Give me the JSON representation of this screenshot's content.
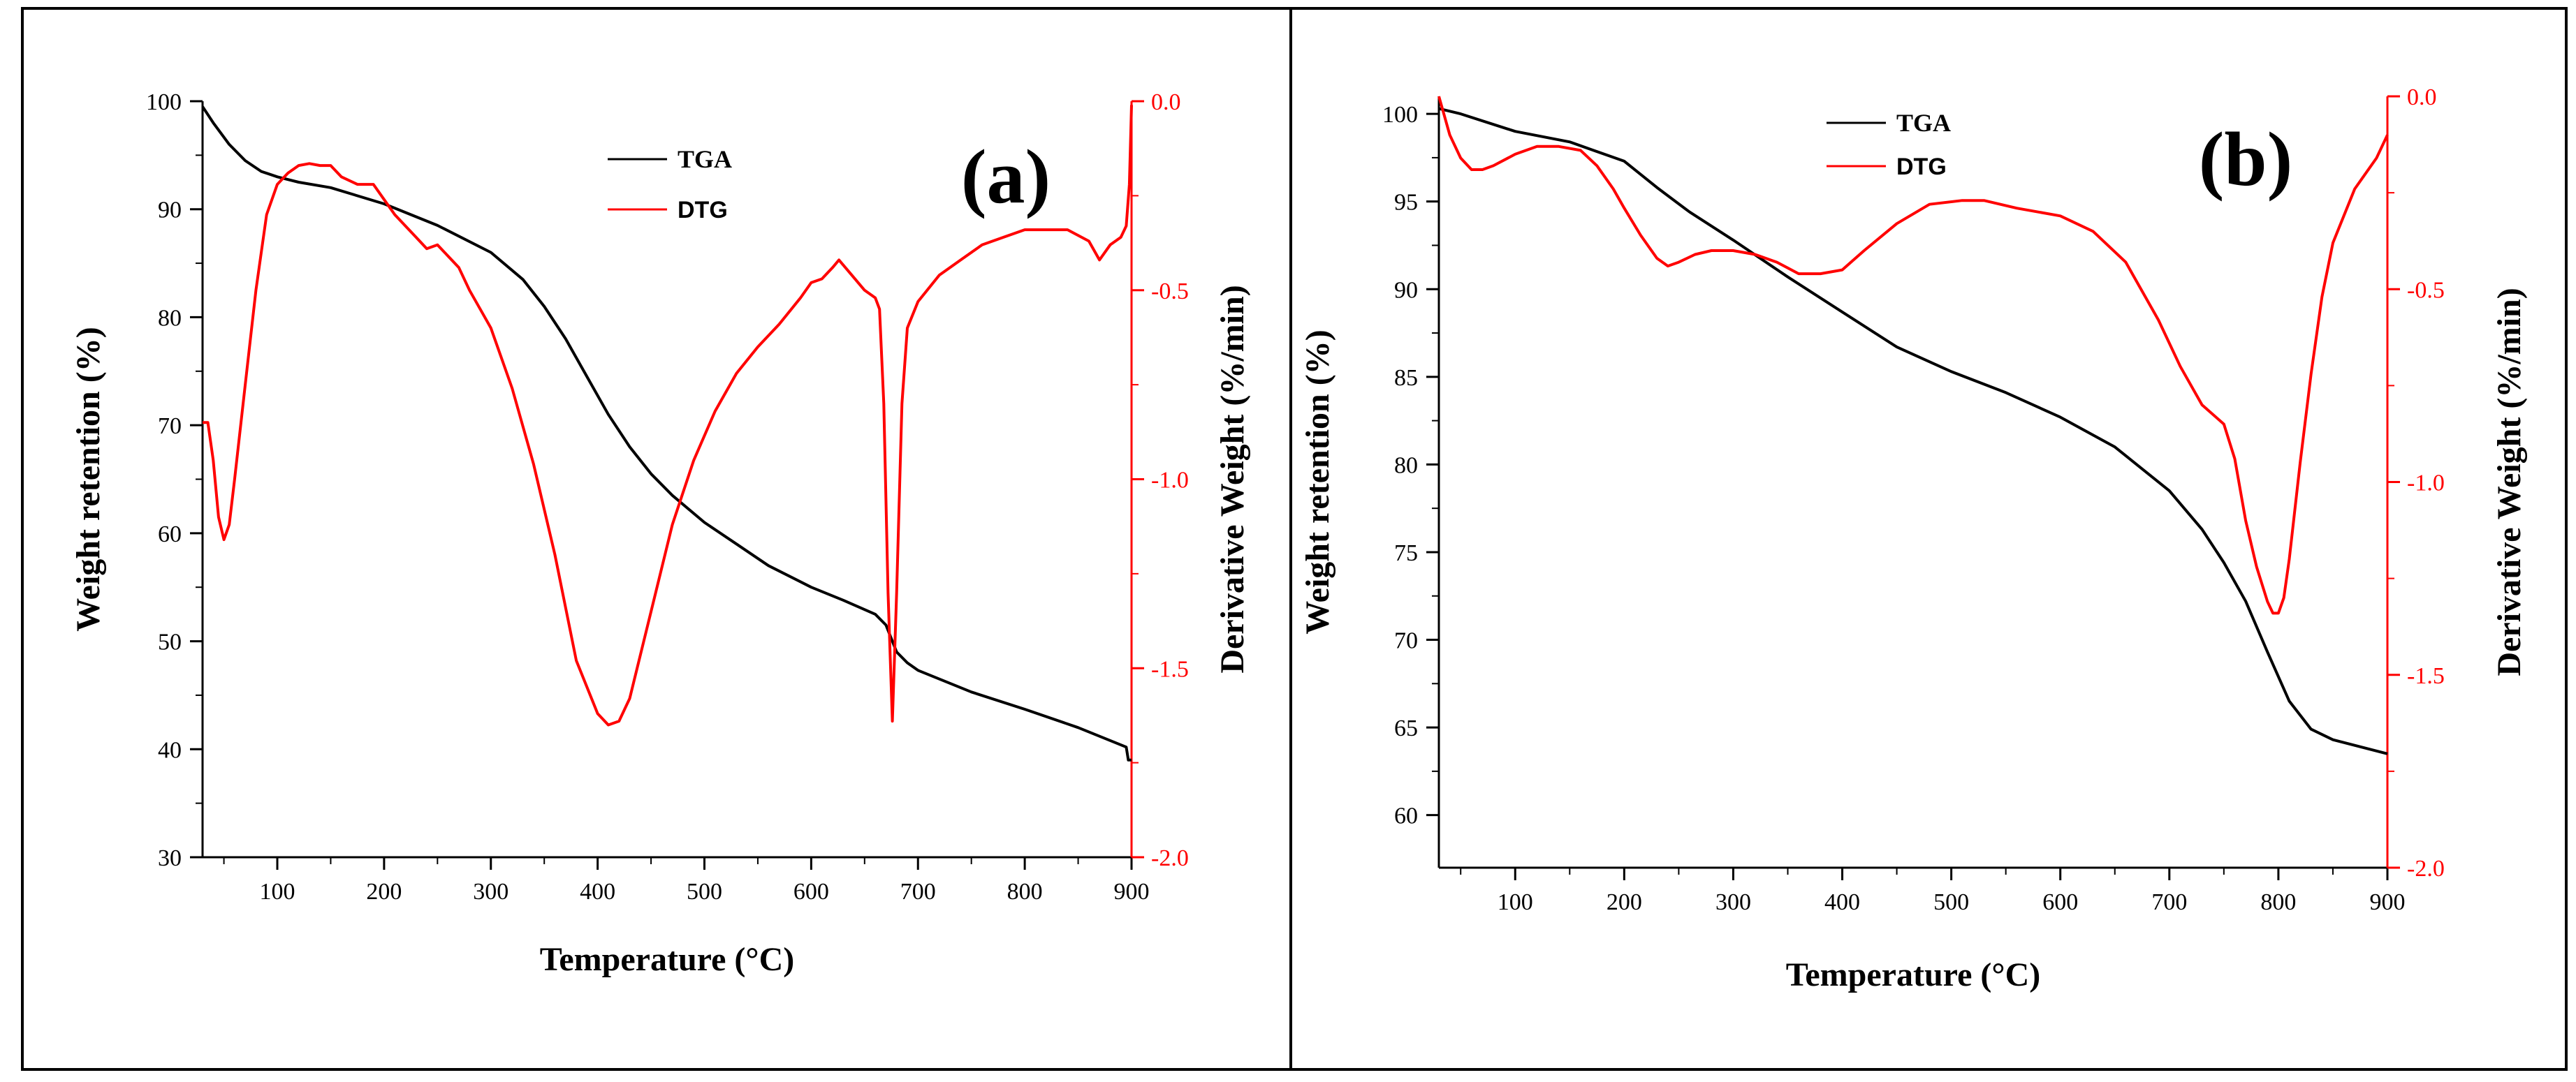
{
  "colors": {
    "tga": "#000000",
    "dtg": "#ff0000",
    "frame": "#000000",
    "background": "#ffffff"
  },
  "chart_data": [
    {
      "type": "line",
      "panel_label": "(a)",
      "xlabel": "Temperature (°C)",
      "ylabel": "Weight retention (%)",
      "ylabel_right": "Derivative Weight (%/min)",
      "xlim": [
        30,
        900
      ],
      "ylim": [
        30,
        100
      ],
      "ylim_right": [
        -2.0,
        0.0
      ],
      "x_ticks": [
        "100",
        "200",
        "300",
        "400",
        "500",
        "600",
        "700",
        "800",
        "900"
      ],
      "x_tick_values": [
        100,
        200,
        300,
        400,
        500,
        600,
        700,
        800,
        900
      ],
      "y_ticks": [
        "30",
        "40",
        "50",
        "60",
        "70",
        "80",
        "90",
        "100"
      ],
      "y_tick_values": [
        30,
        40,
        50,
        60,
        70,
        80,
        90,
        100
      ],
      "y2_ticks": [
        "-2.0",
        "-1.5",
        "-1.0",
        "-0.5",
        "0.0"
      ],
      "y2_tick_values": [
        -2.0,
        -1.5,
        -1.0,
        -0.5,
        0.0
      ],
      "legend": {
        "placement": "top-center",
        "tga_label": "TGA",
        "dtg_label": "DTG"
      },
      "series": [
        {
          "name": "TGA",
          "axis": "left",
          "x": [
            30,
            40,
            55,
            70,
            85,
            100,
            120,
            150,
            200,
            250,
            300,
            330,
            350,
            370,
            390,
            410,
            430,
            450,
            470,
            500,
            530,
            560,
            600,
            630,
            660,
            670,
            676,
            680,
            690,
            700,
            750,
            800,
            850,
            895,
            897,
            900
          ],
          "y": [
            99.5,
            98,
            96,
            94.5,
            93.5,
            93,
            92.5,
            92,
            90.5,
            88.5,
            86,
            83.5,
            81,
            78,
            74.5,
            71,
            68,
            65.5,
            63.5,
            61,
            59,
            57,
            55,
            53.8,
            52.5,
            51.5,
            50,
            49,
            48,
            47.3,
            45.3,
            43.7,
            42,
            40.2,
            39,
            39
          ]
        },
        {
          "name": "DTG",
          "axis": "right",
          "x": [
            30,
            35,
            40,
            45,
            50,
            55,
            60,
            70,
            80,
            90,
            100,
            110,
            120,
            130,
            140,
            150,
            160,
            175,
            190,
            200,
            210,
            220,
            230,
            240,
            250,
            260,
            270,
            280,
            290,
            300,
            320,
            340,
            360,
            380,
            400,
            410,
            420,
            430,
            450,
            470,
            490,
            510,
            530,
            550,
            570,
            590,
            600,
            610,
            620,
            626,
            635,
            650,
            660,
            664,
            668,
            672,
            676,
            680,
            685,
            690,
            700,
            720,
            740,
            760,
            780,
            800,
            820,
            840,
            860,
            870,
            880,
            890,
            895,
            898,
            900
          ],
          "y": [
            -0.85,
            -0.85,
            -0.95,
            -1.1,
            -1.16,
            -1.12,
            -1.0,
            -0.75,
            -0.5,
            -0.3,
            -0.22,
            -0.19,
            -0.17,
            -0.165,
            -0.17,
            -0.17,
            -0.2,
            -0.22,
            -0.22,
            -0.26,
            -0.3,
            -0.33,
            -0.36,
            -0.39,
            -0.38,
            -0.41,
            -0.44,
            -0.5,
            -0.55,
            -0.6,
            -0.76,
            -0.96,
            -1.2,
            -1.48,
            -1.62,
            -1.65,
            -1.64,
            -1.58,
            -1.35,
            -1.12,
            -0.95,
            -0.82,
            -0.72,
            -0.65,
            -0.59,
            -0.52,
            -0.48,
            -0.47,
            -0.44,
            -0.42,
            -0.45,
            -0.5,
            -0.52,
            -0.55,
            -0.8,
            -1.3,
            -1.64,
            -1.3,
            -0.8,
            -0.6,
            -0.53,
            -0.46,
            -0.42,
            -0.38,
            -0.36,
            -0.34,
            -0.34,
            -0.34,
            -0.37,
            -0.42,
            -0.38,
            -0.36,
            -0.33,
            -0.22,
            -0.01
          ]
        }
      ]
    },
    {
      "type": "line",
      "panel_label": "(b)",
      "xlabel": "Temperature (°C)",
      "ylabel": "Weight retention (%)",
      "ylabel_right": "Derivative Weight (%/min)",
      "xlim": [
        30,
        900
      ],
      "ylim": [
        57,
        101
      ],
      "ylim_right": [
        -2.0,
        0.0
      ],
      "x_ticks": [
        "100",
        "200",
        "300",
        "400",
        "500",
        "600",
        "700",
        "800",
        "900"
      ],
      "x_tick_values": [
        100,
        200,
        300,
        400,
        500,
        600,
        700,
        800,
        900
      ],
      "y_ticks": [
        "60",
        "65",
        "70",
        "75",
        "80",
        "85",
        "90",
        "95",
        "100"
      ],
      "y_tick_values": [
        60,
        65,
        70,
        75,
        80,
        85,
        90,
        95,
        100
      ],
      "y2_ticks": [
        "-2.0",
        "-1.5",
        "-1.0",
        "-0.5",
        "0.0"
      ],
      "y2_tick_values": [
        -2.0,
        -1.5,
        -1.0,
        -0.5,
        0.0
      ],
      "legend": {
        "placement": "top-center",
        "tga_label": "TGA",
        "dtg_label": "DTG"
      },
      "series": [
        {
          "name": "TGA",
          "axis": "left",
          "x": [
            30,
            50,
            80,
            100,
            150,
            200,
            230,
            260,
            300,
            350,
            400,
            450,
            500,
            550,
            600,
            650,
            700,
            730,
            750,
            770,
            790,
            810,
            830,
            850,
            900
          ],
          "y": [
            100.3,
            100,
            99.4,
            99,
            98.4,
            97.3,
            95.8,
            94.4,
            92.8,
            90.7,
            88.7,
            86.7,
            85.3,
            84.1,
            82.7,
            81,
            78.5,
            76.3,
            74.4,
            72.2,
            69.3,
            66.5,
            64.9,
            64.3,
            63.5
          ]
        },
        {
          "name": "DTG",
          "axis": "right",
          "x": [
            30,
            35,
            40,
            50,
            60,
            70,
            80,
            100,
            120,
            140,
            160,
            175,
            190,
            200,
            215,
            230,
            240,
            250,
            265,
            280,
            300,
            320,
            340,
            360,
            380,
            400,
            420,
            450,
            480,
            510,
            530,
            560,
            600,
            630,
            660,
            690,
            710,
            730,
            750,
            760,
            770,
            780,
            790,
            795,
            800,
            805,
            810,
            820,
            830,
            840,
            850,
            870,
            890,
            900
          ],
          "y": [
            0.0,
            -0.05,
            -0.1,
            -0.16,
            -0.19,
            -0.19,
            -0.18,
            -0.15,
            -0.13,
            -0.13,
            -0.14,
            -0.18,
            -0.24,
            -0.29,
            -0.36,
            -0.42,
            -0.44,
            -0.43,
            -0.41,
            -0.4,
            -0.4,
            -0.41,
            -0.43,
            -0.46,
            -0.46,
            -0.45,
            -0.4,
            -0.33,
            -0.28,
            -0.27,
            -0.27,
            -0.29,
            -0.31,
            -0.35,
            -0.43,
            -0.58,
            -0.7,
            -0.8,
            -0.85,
            -0.94,
            -1.1,
            -1.22,
            -1.31,
            -1.34,
            -1.34,
            -1.3,
            -1.2,
            -0.95,
            -0.72,
            -0.52,
            -0.38,
            -0.24,
            -0.16,
            -0.1
          ]
        }
      ]
    }
  ]
}
